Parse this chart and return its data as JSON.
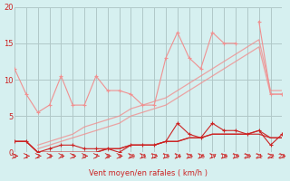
{
  "x": [
    0,
    1,
    2,
    3,
    4,
    5,
    6,
    7,
    8,
    9,
    10,
    11,
    12,
    13,
    14,
    15,
    16,
    17,
    18,
    19,
    20,
    21,
    22,
    23
  ],
  "line1": [
    11.5,
    8.0,
    null,
    null,
    null,
    null,
    null,
    null,
    null,
    null,
    null,
    null,
    null,
    null,
    null,
    null,
    null,
    null,
    null,
    null,
    null,
    null,
    null,
    null
  ],
  "line_upper_zigzag": [
    11.5,
    8.0,
    5.5,
    6.5,
    10.5,
    6.5,
    6.5,
    10.5,
    8.5,
    8.5,
    8.0,
    6.5,
    6.5,
    13.0,
    16.5,
    13.0,
    11.5,
    16.5,
    15.0,
    15.0,
    null,
    18.0,
    8.0,
    8.0
  ],
  "line_upper_trend1": [
    null,
    null,
    0.5,
    1.0,
    1.5,
    2.0,
    2.5,
    3.0,
    3.5,
    4.0,
    5.0,
    5.5,
    6.0,
    6.5,
    7.5,
    8.5,
    9.5,
    10.5,
    11.5,
    12.5,
    13.5,
    14.5,
    8.0,
    8.0
  ],
  "line_upper_trend2": [
    null,
    null,
    1.0,
    1.5,
    2.0,
    2.5,
    3.5,
    4.0,
    4.5,
    5.0,
    6.0,
    6.5,
    7.0,
    7.5,
    8.5,
    9.5,
    10.5,
    11.5,
    12.5,
    13.5,
    14.5,
    15.5,
    8.5,
    8.5
  ],
  "line_lower_zigzag": [
    1.5,
    1.5,
    0.0,
    0.5,
    1.0,
    1.0,
    0.5,
    0.5,
    0.5,
    0.0,
    1.0,
    1.0,
    1.0,
    1.5,
    4.0,
    2.5,
    2.0,
    4.0,
    3.0,
    3.0,
    2.5,
    3.0,
    1.0,
    2.5
  ],
  "line_lower_trend1": [
    1.5,
    1.5,
    0.0,
    0.0,
    0.0,
    0.0,
    0.0,
    0.0,
    0.5,
    0.5,
    1.0,
    1.0,
    1.0,
    1.5,
    1.5,
    2.0,
    2.0,
    2.5,
    2.5,
    2.5,
    2.5,
    2.5,
    2.0,
    2.0
  ],
  "line_lower_trend2": [
    1.5,
    1.5,
    0.0,
    0.0,
    0.0,
    0.0,
    0.0,
    0.0,
    0.5,
    0.5,
    1.0,
    1.0,
    1.0,
    1.5,
    1.5,
    2.0,
    2.0,
    2.5,
    2.5,
    2.5,
    2.5,
    3.0,
    2.0,
    2.0
  ],
  "arrows": [
    0,
    1,
    2,
    3,
    4,
    5,
    6,
    7,
    8,
    9,
    10,
    11,
    12,
    13,
    14,
    15,
    16,
    17,
    18,
    19,
    20,
    21,
    22,
    23
  ],
  "bg_color": "#d6f0f0",
  "grid_color": "#b0c8c8",
  "line_color_light": "#f09090",
  "line_color_dark": "#cc2222",
  "xlabel": "Vent moyen/en rafales ( km/h )",
  "ylabel": "",
  "ylim": [
    0,
    20
  ],
  "xlim": [
    0,
    23
  ]
}
